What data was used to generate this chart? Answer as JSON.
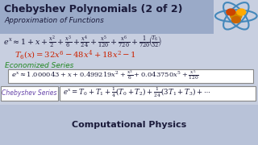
{
  "title": "Chebyshev Polynomials (2 of 2)",
  "subtitle": "Approximation of Functions",
  "header_bg": "#9aaac8",
  "bg_color": "#c8cfe0",
  "footer_bg": "#b8c2d8",
  "title_color": "#1a1a3a",
  "subtitle_color": "#1a1a3a",
  "dark_color": "#1a1a3a",
  "red_color": "#cc2200",
  "green_color": "#228822",
  "purple_color": "#6644aa",
  "box_bg": "#ffffff",
  "box_edge": "#888888",
  "footer_text": "Computational Physics"
}
